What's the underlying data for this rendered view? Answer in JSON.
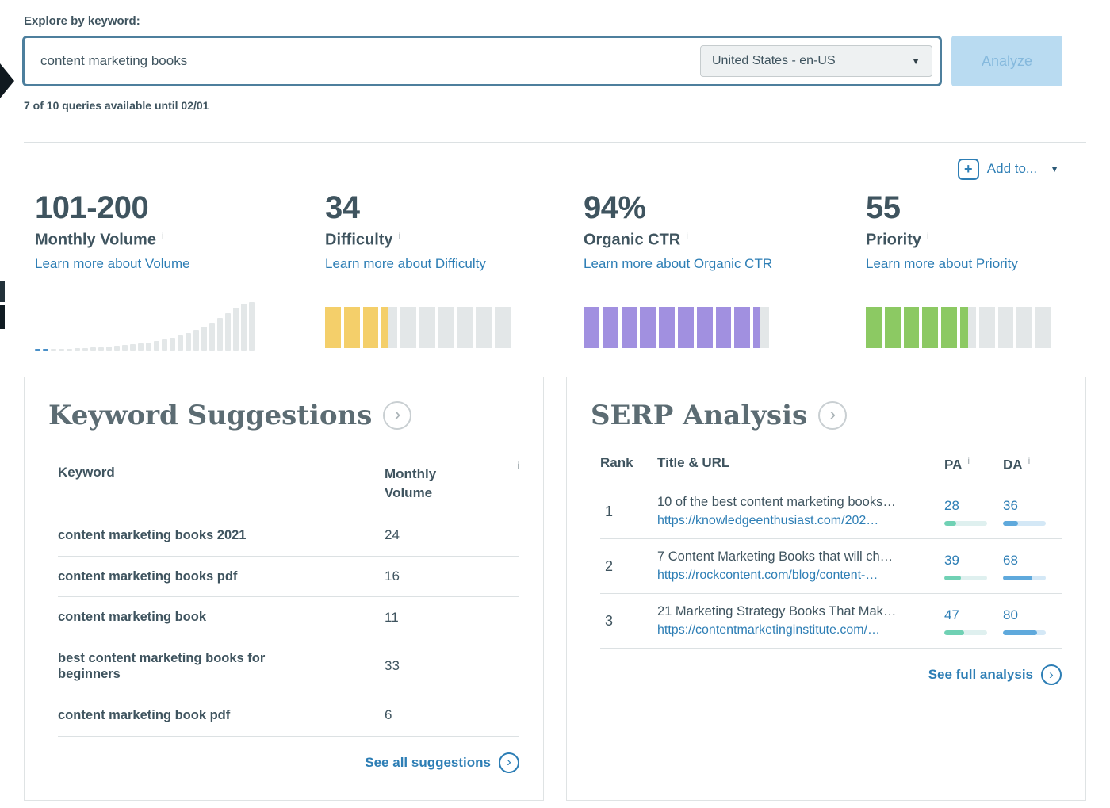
{
  "icons": {
    "info": "i",
    "chevron": "›",
    "caret": "▼",
    "plus": "+"
  },
  "colors": {
    "accent_blue": "#2d7eb5",
    "dark_text": "#3f545f",
    "search_border": "#4d7f9d",
    "pa_fill": "#70d1b4",
    "da_fill": "#5fa9dc",
    "bar_gray": "#e3e7e8"
  },
  "explore": {
    "label": "Explore by keyword:",
    "query": "content marketing books",
    "locale_selected": "United States - en-US",
    "analyze_label": "Analyze",
    "quota_text": "7 of 10 queries available until 02/01",
    "add_to_label": "Add to..."
  },
  "metrics": [
    {
      "value": "101-200",
      "label": "Monthly Volume",
      "link_label": "Learn more about Volume",
      "viz": "trend",
      "trend": [
        3,
        3,
        3,
        3,
        3,
        4,
        4,
        5,
        5,
        6,
        7,
        8,
        9,
        10,
        11,
        13,
        15,
        17,
        20,
        23,
        27,
        31,
        36,
        42,
        48,
        55,
        60,
        62
      ],
      "trend_highlight_count": 2,
      "trend_highlight_color": "#4a90c8"
    },
    {
      "value": "34",
      "label": "Difficulty",
      "link_label": "Learn more about Difficulty",
      "viz": "gauge",
      "gauge_percent": 34,
      "gauge_color": "#f4cf6a"
    },
    {
      "value": "94%",
      "label": "Organic CTR",
      "link_label": "Learn more about Organic CTR",
      "viz": "gauge",
      "gauge_percent": 94,
      "gauge_color": "#a190e0"
    },
    {
      "value": "55",
      "label": "Priority",
      "link_label": "Learn more about Priority",
      "viz": "gauge",
      "gauge_percent": 55,
      "gauge_color": "#8cc963"
    }
  ],
  "keyword_suggestions": {
    "title": "Keyword Suggestions",
    "col_keyword": "Keyword",
    "col_volume": "Monthly Volume",
    "rows": [
      {
        "keyword": "content marketing books 2021",
        "volume": "24"
      },
      {
        "keyword": "content marketing books pdf",
        "volume": "16"
      },
      {
        "keyword": "content marketing book",
        "volume": "11"
      },
      {
        "keyword": "best content marketing books for beginners",
        "volume": "33"
      },
      {
        "keyword": "content marketing book pdf",
        "volume": "6"
      }
    ],
    "footer_link": "See all suggestions"
  },
  "serp_analysis": {
    "title": "SERP Analysis",
    "col_rank": "Rank",
    "col_title_url": "Title & URL",
    "col_pa": "PA",
    "col_da": "DA",
    "rows": [
      {
        "rank": "1",
        "title": "10 of the best content marketing books…",
        "url": "https://knowledgeenthusiast.com/202…",
        "pa": 28,
        "da": 36
      },
      {
        "rank": "2",
        "title": "7 Content Marketing Books that will ch…",
        "url": "https://rockcontent.com/blog/content-…",
        "pa": 39,
        "da": 68
      },
      {
        "rank": "3",
        "title": "21 Marketing Strategy Books That Mak…",
        "url": "https://contentmarketinginstitute.com/…",
        "pa": 47,
        "da": 80
      }
    ],
    "footer_link": "See full analysis"
  }
}
